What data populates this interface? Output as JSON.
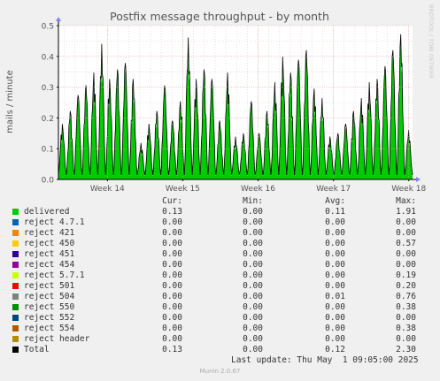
{
  "chart_data": {
    "type": "area",
    "title": "Postfix message throughput - by month",
    "ylabel": "mails / minute",
    "watermark": "RRDTOOL / TOBI OETIKER",
    "ylim": [
      0,
      0.5
    ],
    "yticks": [
      "0.0",
      "0.1",
      "0.2",
      "0.3",
      "0.4",
      "0.5"
    ],
    "xticks": [
      {
        "label": "Week 14",
        "week": 14
      },
      {
        "label": "Week 15",
        "week": 15
      },
      {
        "label": "Week 16",
        "week": 16
      },
      {
        "label": "Week 17",
        "week": 17
      },
      {
        "label": "Week 18",
        "week": 18
      }
    ],
    "x_range_weeks": [
      13.35,
      18.05
    ],
    "daily_peaks": [
      0.16,
      0.2,
      0.25,
      0.28,
      0.32,
      0.41,
      0.3,
      0.33,
      0.35,
      0.3,
      0.1,
      0.16,
      0.2,
      0.28,
      0.17,
      0.23,
      0.43,
      0.3,
      0.33,
      0.3,
      0.17,
      0.32,
      0.12,
      0.13,
      0.23,
      0.13,
      0.2,
      0.29,
      0.37,
      0.32,
      0.36,
      0.39,
      0.27,
      0.24,
      0.12,
      0.13,
      0.16,
      0.2,
      0.24,
      0.29,
      0.3,
      0.34,
      0.39,
      0.44,
      0.14
    ],
    "series": [
      {
        "name": "delivered",
        "color": "#00cc00",
        "cur": "0.13",
        "min": "0.00",
        "avg": "0.11",
        "max": "1.91"
      },
      {
        "name": "reject 4.7.1",
        "color": "#0066b3",
        "cur": "0.00",
        "min": "0.00",
        "avg": "0.00",
        "max": "0.00"
      },
      {
        "name": "reject 421",
        "color": "#ff8000",
        "cur": "0.00",
        "min": "0.00",
        "avg": "0.00",
        "max": "0.00"
      },
      {
        "name": "reject 450",
        "color": "#ffcc00",
        "cur": "0.00",
        "min": "0.00",
        "avg": "0.00",
        "max": "0.57"
      },
      {
        "name": "reject 451",
        "color": "#330099",
        "cur": "0.00",
        "min": "0.00",
        "avg": "0.00",
        "max": "0.00"
      },
      {
        "name": "reject 454",
        "color": "#990099",
        "cur": "0.00",
        "min": "0.00",
        "avg": "0.00",
        "max": "0.00"
      },
      {
        "name": "reject 5.7.1",
        "color": "#ccff00",
        "cur": "0.00",
        "min": "0.00",
        "avg": "0.00",
        "max": "0.19"
      },
      {
        "name": "reject 501",
        "color": "#ff0000",
        "cur": "0.00",
        "min": "0.00",
        "avg": "0.00",
        "max": "0.20"
      },
      {
        "name": "reject 504",
        "color": "#808080",
        "cur": "0.00",
        "min": "0.00",
        "avg": "0.01",
        "max": "0.76"
      },
      {
        "name": "reject 550",
        "color": "#008f00",
        "cur": "0.00",
        "min": "0.00",
        "avg": "0.00",
        "max": "0.38"
      },
      {
        "name": "reject 552",
        "color": "#00487d",
        "cur": "0.00",
        "min": "0.00",
        "avg": "0.00",
        "max": "0.00"
      },
      {
        "name": "reject 554",
        "color": "#b35a00",
        "cur": "0.00",
        "min": "0.00",
        "avg": "0.00",
        "max": "0.38"
      },
      {
        "name": "reject header",
        "color": "#b38f00",
        "cur": "0.00",
        "min": "0.00",
        "avg": "0.00",
        "max": "0.00"
      },
      {
        "name": "Total",
        "color": "#000000",
        "cur": "0.13",
        "min": "0.00",
        "avg": "0.12",
        "max": "2.30"
      }
    ]
  },
  "legend_headers": {
    "cur": "Cur:",
    "min": "Min:",
    "avg": "Avg:",
    "max": "Max:"
  },
  "last_update": "Last update: Thu May  1 09:05:00 2025",
  "version": "Munin 2.0.67",
  "colors": {
    "background": "#f0f0f0",
    "plot": "#ffffff",
    "grid_major": "#e0a0a0",
    "grid_minor": "#e0c8c8",
    "fill": "#00cc00"
  }
}
